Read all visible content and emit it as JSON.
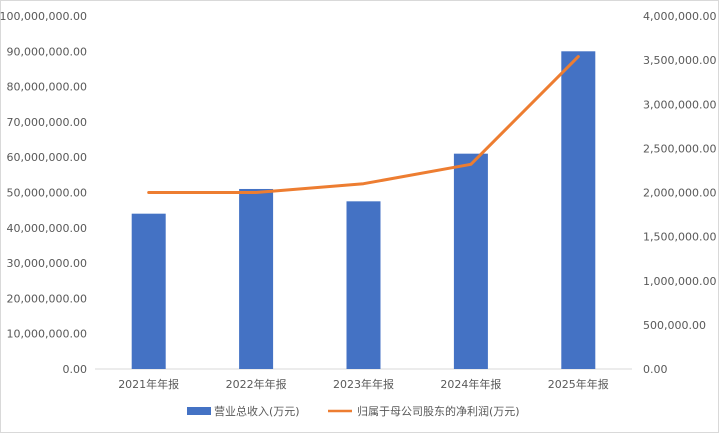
{
  "chart_data": {
    "type": "bar",
    "categories": [
      "2021年年报",
      "2022年年报",
      "2023年年报",
      "2024年年报",
      "2025年年报"
    ],
    "series": [
      {
        "name": "营业总收入(万元)",
        "type": "bar",
        "axis": "left",
        "color": "#4472C4",
        "values": [
          44000000,
          51000000,
          47500000,
          61000000,
          90000000
        ]
      },
      {
        "name": "归属于母公司股东的净利润(万元)",
        "type": "line",
        "axis": "right",
        "color": "#ED7D31",
        "values": [
          2000000,
          2000000,
          2100000,
          2320000,
          3540000
        ]
      }
    ],
    "y_left": {
      "lim": [
        0,
        100000000
      ],
      "ticks": [
        "0.00",
        "10,000,000.00",
        "20,000,000.00",
        "30,000,000.00",
        "40,000,000.00",
        "50,000,000.00",
        "60,000,000.00",
        "70,000,000.00",
        "80,000,000.00",
        "90,000,000.00",
        "100,000,000.00"
      ]
    },
    "y_right": {
      "lim": [
        0,
        4000000
      ],
      "ticks": [
        "0.00",
        "500,000.00",
        "1,000,000.00",
        "1,500,000.00",
        "2,000,000.00",
        "2,500,000.00",
        "3,000,000.00",
        "3,500,000.00",
        "4,000,000.00"
      ]
    },
    "grid": false,
    "legend": "bottom"
  }
}
